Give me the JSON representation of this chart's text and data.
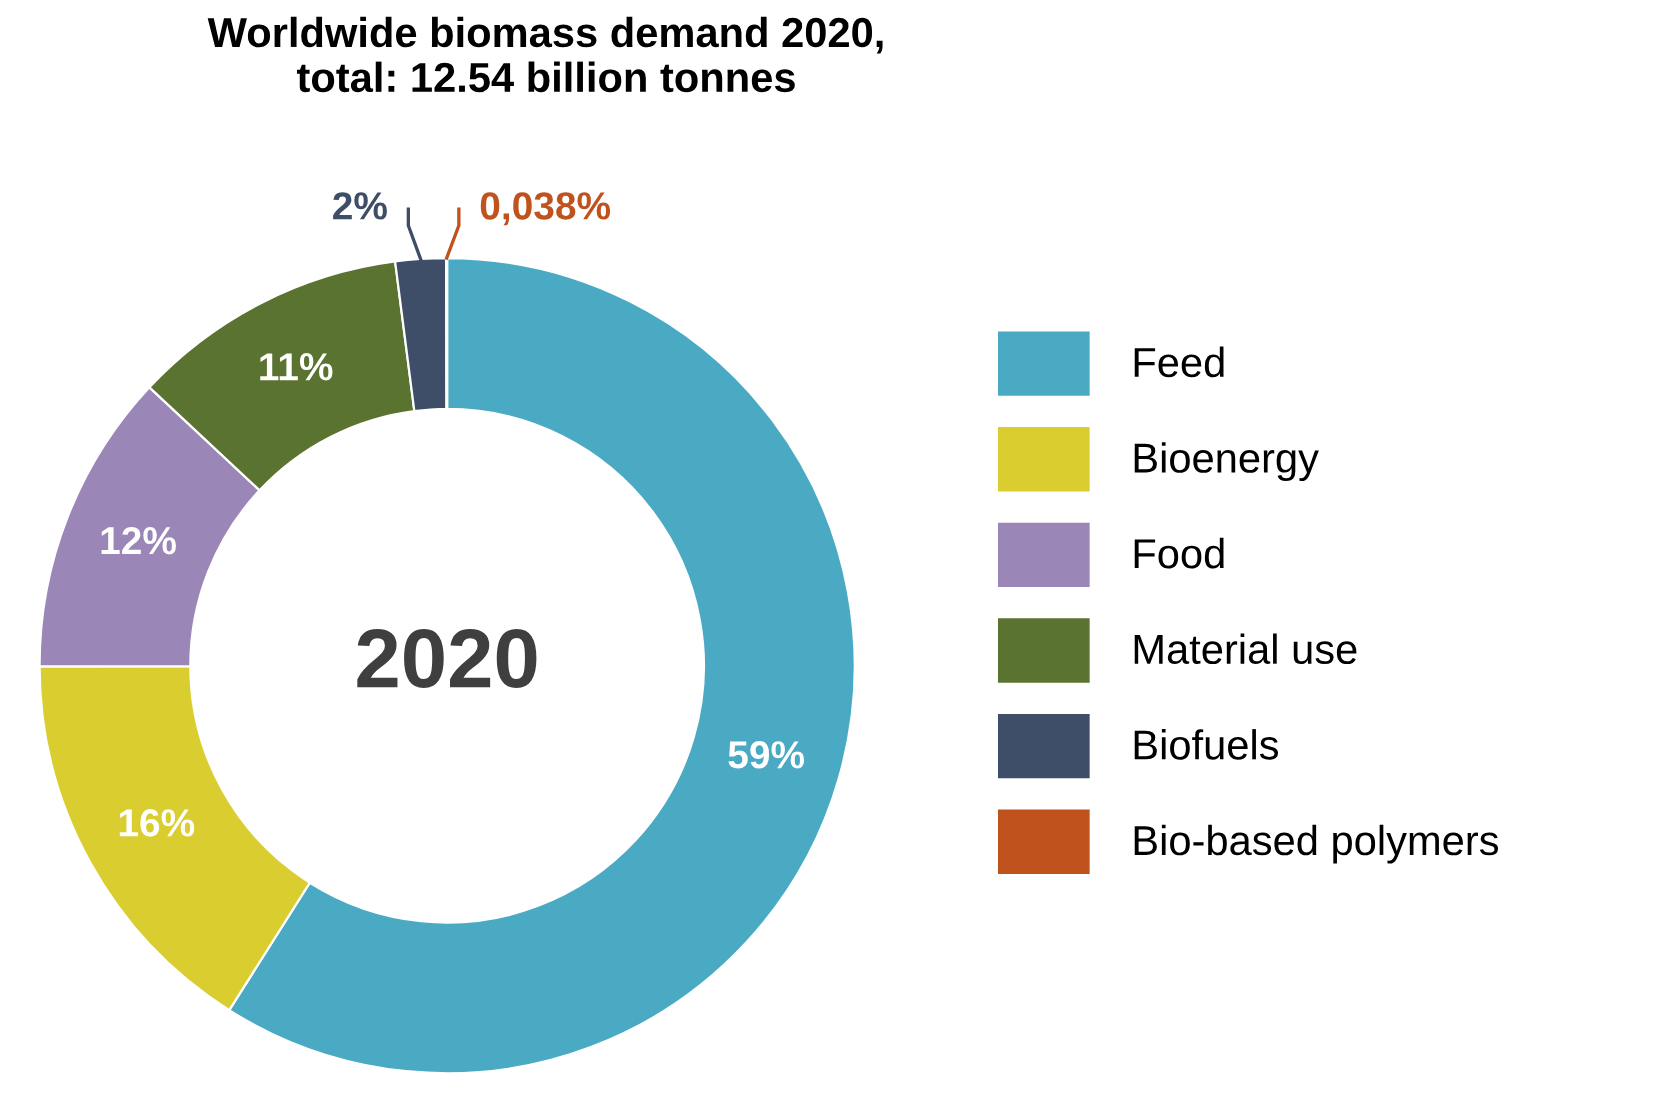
{
  "chart_data": {
    "type": "donut",
    "title": "Worldwide biomass demand 2020,\ntotal: 12.54 billion tonnes",
    "categories": [
      "Feed",
      "Bioenergy",
      "Food",
      "Material use",
      "Biofuels",
      "Bio-based polymers"
    ],
    "values": [
      59,
      16,
      12,
      11,
      2,
      0.038
    ],
    "colors": [
      "#4aaac4",
      "#d9cd2f",
      "#9b86b8",
      "#5a7330",
      "#3e4e68",
      "#c0521e"
    ],
    "value_labels": [
      "59%",
      "16%",
      "12%",
      "11%",
      "2%",
      "0,038%"
    ],
    "annotations": [
      "2020"
    ],
    "legend": "right"
  }
}
